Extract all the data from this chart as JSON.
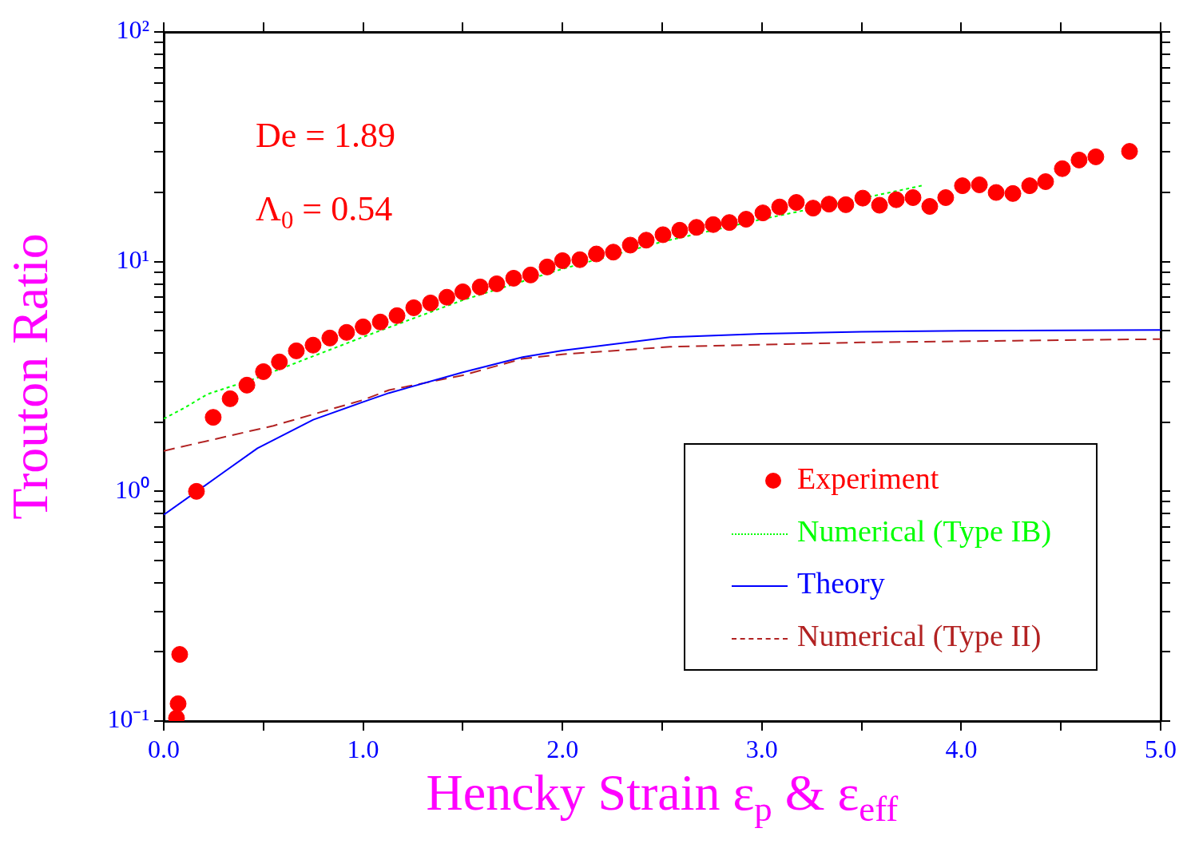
{
  "chart_data": {
    "type": "scatter",
    "xlabel": "Hencky Strain ε$_{p}$ & ε$_{eff}$",
    "ylabel": "Trouton Ratio",
    "log": "y",
    "grid": false,
    "legend": "bottom right",
    "xlim": [
      0,
      5
    ],
    "ylim": [
      0.1,
      100
    ],
    "xticks": [
      {
        "value": 0,
        "label": "0.0"
      },
      {
        "value": 0.5,
        "label": null
      },
      {
        "value": 1,
        "label": "1.0"
      },
      {
        "value": 1.5,
        "label": null
      },
      {
        "value": 2,
        "label": "2.0"
      },
      {
        "value": 2.5,
        "label": null
      },
      {
        "value": 3,
        "label": "3.0"
      },
      {
        "value": 3.5,
        "label": null
      },
      {
        "value": 4,
        "label": "4.0"
      },
      {
        "value": 4.5,
        "label": null
      },
      {
        "value": 5,
        "label": "5.0"
      }
    ],
    "yticks": [
      {
        "value": 0.1,
        "label": "10⁻¹"
      },
      {
        "value": 0.2,
        "label": null
      },
      {
        "value": 0.3,
        "label": null
      },
      {
        "value": 0.4,
        "label": null
      },
      {
        "value": 0.5,
        "label": null
      },
      {
        "value": 0.6,
        "label": null
      },
      {
        "value": 0.7,
        "label": null
      },
      {
        "value": 0.8,
        "label": null
      },
      {
        "value": 0.9,
        "label": null
      },
      {
        "value": 1,
        "label": "10⁰"
      },
      {
        "value": 2,
        "label": null
      },
      {
        "value": 3,
        "label": null
      },
      {
        "value": 4,
        "label": null
      },
      {
        "value": 5,
        "label": null
      },
      {
        "value": 6,
        "label": null
      },
      {
        "value": 7,
        "label": null
      },
      {
        "value": 8,
        "label": null
      },
      {
        "value": 9,
        "label": null
      },
      {
        "value": 10,
        "label": "10¹"
      },
      {
        "value": 20,
        "label": null
      },
      {
        "value": 30,
        "label": null
      },
      {
        "value": 40,
        "label": null
      },
      {
        "value": 50,
        "label": null
      },
      {
        "value": 60,
        "label": null
      },
      {
        "value": 70,
        "label": null
      },
      {
        "value": 80,
        "label": null
      },
      {
        "value": 90,
        "label": null
      },
      {
        "value": 100,
        "label": "10²"
      }
    ],
    "annotations": [
      "De = 1.89",
      "Λ$_{0}$ = 0.54"
    ],
    "series": [
      {
        "name": "Experiment",
        "type": "scatter",
        "marker": "circle",
        "color": "#ff0000",
        "x": [
          0.064,
          0.072,
          0.08,
          0.164,
          0.248,
          0.333,
          0.417,
          0.5,
          0.58,
          0.665,
          0.749,
          0.833,
          0.917,
          1.0,
          1.086,
          1.17,
          1.254,
          1.338,
          1.42,
          1.5,
          1.587,
          1.67,
          1.755,
          1.84,
          1.923,
          2.0,
          2.087,
          2.17,
          2.255,
          2.34,
          2.42,
          2.504,
          2.588,
          2.672,
          2.756,
          2.837,
          2.921,
          3.005,
          3.089,
          3.173,
          3.257,
          3.337,
          3.421,
          3.506,
          3.59,
          3.674,
          3.758,
          3.842,
          3.922,
          4.006,
          4.091,
          4.175,
          4.259,
          4.343,
          4.423,
          4.507,
          4.591,
          4.675,
          4.844
        ],
        "values": [
          0.103,
          0.119,
          0.195,
          1.0,
          2.1,
          2.53,
          2.9,
          3.32,
          3.66,
          4.09,
          4.33,
          4.65,
          4.92,
          5.2,
          5.46,
          5.82,
          6.3,
          6.61,
          7.0,
          7.39,
          7.76,
          8.01,
          8.47,
          8.75,
          9.48,
          10.1,
          10.2,
          10.8,
          11.0,
          11.8,
          12.4,
          13.1,
          13.7,
          14.1,
          14.5,
          14.8,
          15.3,
          16.3,
          17.3,
          18.1,
          17.1,
          17.8,
          17.7,
          18.9,
          17.6,
          18.6,
          19.0,
          17.4,
          19.0,
          21.4,
          21.6,
          20.0,
          19.8,
          21.4,
          22.3,
          25.4,
          27.7,
          28.6,
          30.2
        ]
      },
      {
        "name": "Numerical (Type IB)",
        "type": "line",
        "line_style": "dotted",
        "marker": "none",
        "color": "#00ff00",
        "x": [
          0,
          0.1,
          0.22,
          0.46,
          1.0,
          1.5,
          2.0,
          2.5,
          3.0,
          3.7,
          3.81
        ],
        "values": [
          2.07,
          2.3,
          2.65,
          3.1,
          4.7,
          6.8,
          9.3,
          12.2,
          15.3,
          20.5,
          21.5
        ]
      },
      {
        "name": "Theory",
        "type": "line",
        "line_style": "solid",
        "marker": "none",
        "color": "#0000ff",
        "x": [
          0,
          0.3,
          0.47,
          0.75,
          1.0,
          1.13,
          1.5,
          1.8,
          2.0,
          2.54,
          3.0,
          3.5,
          4.0,
          5.0
        ],
        "values": [
          0.79,
          1.21,
          1.54,
          2.05,
          2.45,
          2.68,
          3.3,
          3.84,
          4.1,
          4.69,
          4.85,
          4.95,
          5.0,
          5.04
        ]
      },
      {
        "name": "Numerical (Type II)",
        "type": "line",
        "line_style": "dashed",
        "marker": "none",
        "color": "#b22222",
        "x": [
          0,
          0.55,
          1.0,
          1.13,
          1.5,
          1.8,
          2.0,
          2.54,
          3.0,
          3.5,
          4.0,
          5.0
        ],
        "values": [
          1.5,
          1.93,
          2.5,
          2.76,
          3.2,
          3.78,
          3.95,
          4.26,
          4.35,
          4.45,
          4.5,
          4.6
        ]
      }
    ]
  }
}
